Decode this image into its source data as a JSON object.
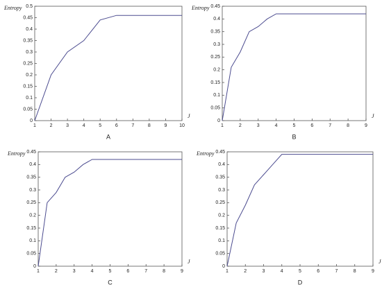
{
  "chart_data": [
    {
      "type": "line",
      "caption": "A",
      "ylabel": "Entropy",
      "xlabel": "J",
      "color": "#4b4b8f",
      "x": [
        1,
        2,
        3,
        4,
        5,
        6,
        10
      ],
      "values": [
        0,
        0.2,
        0.3,
        0.35,
        0.44,
        0.46,
        0.46
      ],
      "xlim": [
        1,
        10
      ],
      "ylim": [
        0,
        0.5
      ],
      "xticks": [
        1,
        2,
        3,
        4,
        5,
        6,
        7,
        8,
        9,
        10
      ],
      "yticks": [
        0,
        0.05,
        0.1,
        0.15,
        0.2,
        0.25,
        0.3,
        0.35,
        0.4,
        0.45,
        0.5
      ]
    },
    {
      "type": "line",
      "caption": "B",
      "ylabel": "Entropy",
      "xlabel": "J",
      "color": "#4b4b8f",
      "x": [
        1,
        1.5,
        2,
        2.5,
        3,
        3.5,
        4,
        9
      ],
      "values": [
        0,
        0.21,
        0.27,
        0.35,
        0.37,
        0.4,
        0.42,
        0.42
      ],
      "xlim": [
        1,
        9
      ],
      "ylim": [
        0,
        0.45
      ],
      "xticks": [
        1,
        2,
        3,
        4,
        5,
        6,
        7,
        8,
        9
      ],
      "yticks": [
        0,
        0.05,
        0.1,
        0.15,
        0.2,
        0.25,
        0.3,
        0.35,
        0.4,
        0.45
      ]
    },
    {
      "type": "line",
      "caption": "C",
      "ylabel": "Entropy",
      "xlabel": "J",
      "color": "#4b4b8f",
      "x": [
        1,
        1.5,
        2,
        2.5,
        3,
        3.5,
        4,
        9
      ],
      "values": [
        0,
        0.25,
        0.29,
        0.35,
        0.37,
        0.4,
        0.42,
        0.42
      ],
      "xlim": [
        1,
        9
      ],
      "ylim": [
        0,
        0.45
      ],
      "xticks": [
        1,
        2,
        3,
        4,
        5,
        6,
        7,
        8,
        9
      ],
      "yticks": [
        0,
        0.05,
        0.1,
        0.15,
        0.2,
        0.25,
        0.3,
        0.35,
        0.4,
        0.45
      ]
    },
    {
      "type": "line",
      "caption": "D",
      "ylabel": "Entropy",
      "xlabel": "J",
      "color": "#4b4b8f",
      "x": [
        1,
        1.5,
        2,
        2.5,
        3,
        3.5,
        4,
        9
      ],
      "values": [
        0,
        0.17,
        0.24,
        0.32,
        0.36,
        0.4,
        0.44,
        0.44
      ],
      "xlim": [
        1,
        9
      ],
      "ylim": [
        0,
        0.45
      ],
      "xticks": [
        1,
        2,
        3,
        4,
        5,
        6,
        7,
        8,
        9
      ],
      "yticks": [
        0,
        0.05,
        0.1,
        0.15,
        0.2,
        0.25,
        0.3,
        0.35,
        0.4,
        0.45
      ]
    }
  ]
}
